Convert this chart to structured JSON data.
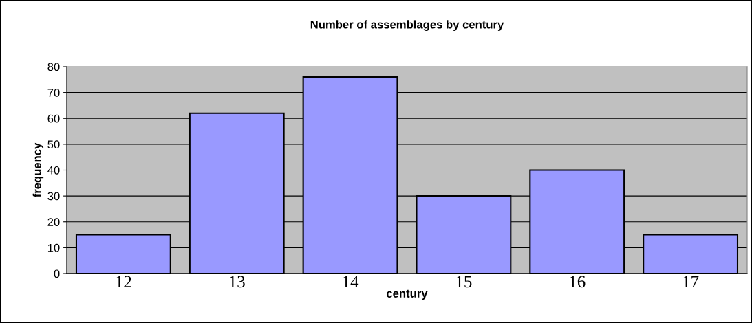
{
  "chart_data": {
    "type": "bar",
    "title": "Number of assemblages by century",
    "xlabel": "century",
    "ylabel": "frequency",
    "categories": [
      "12",
      "13",
      "14",
      "15",
      "16",
      "17"
    ],
    "values": [
      15,
      62,
      76,
      30,
      40,
      15
    ],
    "color": "#9999ff",
    "ylim": [
      0,
      80
    ],
    "yticks": [
      0,
      10,
      20,
      30,
      40,
      50,
      60,
      70,
      80
    ],
    "grid": "y",
    "legend": false
  }
}
